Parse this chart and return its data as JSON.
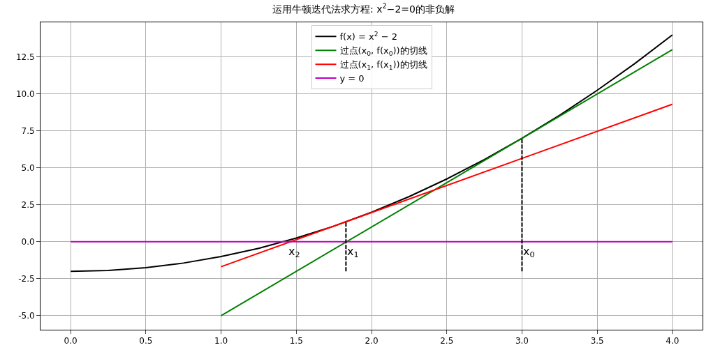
{
  "chart_data": {
    "type": "line",
    "title": "运用牛顿迭代法求方程: x$^{2}$−2=0的非负解",
    "xlim": [
      -0.2,
      4.2
    ],
    "ylim": [
      -5.95,
      14.85
    ],
    "xticks": [
      {
        "value": 0,
        "label": "0.0"
      },
      {
        "value": 0.5,
        "label": "0.5"
      },
      {
        "value": 1,
        "label": "1.0"
      },
      {
        "value": 1.5,
        "label": "1.5"
      },
      {
        "value": 2,
        "label": "2.0"
      },
      {
        "value": 2.5,
        "label": "2.5"
      },
      {
        "value": 3,
        "label": "3.0"
      },
      {
        "value": 3.5,
        "label": "3.5"
      },
      {
        "value": 4,
        "label": "4.0"
      }
    ],
    "yticks": [
      {
        "value": -5,
        "label": "-5.0"
      },
      {
        "value": -2.5,
        "label": "-2.5"
      },
      {
        "value": 0,
        "label": "0.0"
      },
      {
        "value": 2.5,
        "label": "2.5"
      },
      {
        "value": 5,
        "label": "5.0"
      },
      {
        "value": 7.5,
        "label": "7.5"
      },
      {
        "value": 10,
        "label": "10.0"
      },
      {
        "value": 12.5,
        "label": "12.5"
      }
    ],
    "grid": true,
    "legend": "top",
    "series": [
      {
        "name": "f(x) = x$^{2}$ − 2",
        "color": "#000000",
        "line_style": "solid",
        "x": [
          0,
          0.25,
          0.5,
          0.75,
          1,
          1.25,
          1.5,
          1.75,
          2,
          2.25,
          2.5,
          2.75,
          3,
          3.25,
          3.5,
          3.75,
          4
        ],
        "values": [
          -2,
          -1.94,
          -1.75,
          -1.44,
          -1,
          -0.44,
          0.25,
          1.06,
          2,
          3.06,
          4.25,
          5.56,
          7,
          8.56,
          10.25,
          12.06,
          14
        ]
      },
      {
        "name": "过点(x$_{0}$, f(x$_{0}$))的切线",
        "color": "#008000",
        "line_style": "solid",
        "x": [
          1,
          4
        ],
        "values": [
          -5,
          13
        ]
      },
      {
        "name": "过点(x$_{1}$, f(x$_{1}$))的切线",
        "color": "#ff0000",
        "line_style": "solid",
        "x": [
          1,
          4
        ],
        "values": [
          -1.69,
          9.31
        ]
      },
      {
        "name": "y = 0",
        "color": "#bf00bf",
        "line_style": "solid",
        "x": [
          0,
          4
        ],
        "values": [
          0,
          0
        ]
      },
      {
        "color": "#000000",
        "line_style": "dashed",
        "x": [
          3,
          3
        ],
        "values": [
          -2,
          7
        ]
      },
      {
        "color": "#000000",
        "line_style": "dashed",
        "x": [
          1.83,
          1.83
        ],
        "values": [
          -2,
          1.36
        ]
      }
    ],
    "annotations": [
      {
        "text": "x$_{2}$",
        "x": 1.44,
        "y": 0
      },
      {
        "text": "x$_{1}$",
        "x": 1.83,
        "y": 0
      },
      {
        "text": "x$_{0}$",
        "x": 3,
        "y": 0
      }
    ]
  }
}
